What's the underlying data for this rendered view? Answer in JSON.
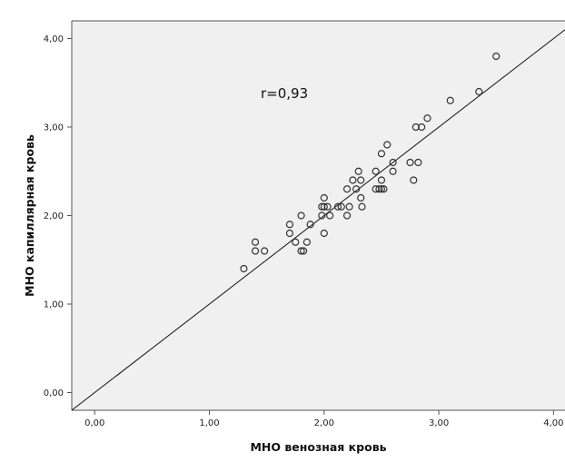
{
  "chart_data": {
    "type": "scatter",
    "xlabel": "МНО венозная кровь",
    "ylabel": "МНО капиллярная кровь",
    "annotation": "r=0,93",
    "xlim": [
      -0.2,
      4.1
    ],
    "ylim": [
      -0.2,
      4.2
    ],
    "x_ticks": [
      {
        "value": 0,
        "label": "0,00"
      },
      {
        "value": 1,
        "label": "1,00"
      },
      {
        "value": 2,
        "label": "2,00"
      },
      {
        "value": 3,
        "label": "3,00"
      },
      {
        "value": 4,
        "label": "4,00"
      }
    ],
    "y_ticks": [
      {
        "value": 0,
        "label": "0,00"
      },
      {
        "value": 1,
        "label": "1,00"
      },
      {
        "value": 2,
        "label": "2,00"
      },
      {
        "value": 3,
        "label": "3,00"
      },
      {
        "value": 4,
        "label": "4,00"
      }
    ],
    "reference_line": {
      "from": [
        -0.2,
        -0.2
      ],
      "to": [
        4.1,
        4.1
      ]
    },
    "grid": false,
    "colors": {
      "plot_background": "#f0f0f0",
      "marker_stroke": "#333333",
      "line": "#111111",
      "frame": "#555555"
    },
    "series": [
      {
        "points": [
          [
            1.3,
            1.4
          ],
          [
            1.4,
            1.6
          ],
          [
            1.4,
            1.7
          ],
          [
            1.48,
            1.6
          ],
          [
            1.7,
            1.8
          ],
          [
            1.7,
            1.9
          ],
          [
            1.75,
            1.7
          ],
          [
            1.8,
            1.6
          ],
          [
            1.82,
            1.6
          ],
          [
            1.8,
            2.0
          ],
          [
            1.85,
            1.7
          ],
          [
            1.88,
            1.9
          ],
          [
            1.98,
            2.0
          ],
          [
            1.98,
            2.1
          ],
          [
            2.0,
            2.1
          ],
          [
            2.0,
            2.2
          ],
          [
            2.0,
            1.8
          ],
          [
            2.03,
            2.1
          ],
          [
            2.05,
            2.0
          ],
          [
            2.12,
            2.1
          ],
          [
            2.15,
            2.1
          ],
          [
            2.2,
            2.0
          ],
          [
            2.22,
            2.1
          ],
          [
            2.2,
            2.3
          ],
          [
            2.25,
            2.4
          ],
          [
            2.28,
            2.3
          ],
          [
            2.3,
            2.5
          ],
          [
            2.32,
            2.4
          ],
          [
            2.32,
            2.2
          ],
          [
            2.33,
            2.1
          ],
          [
            2.45,
            2.3
          ],
          [
            2.45,
            2.5
          ],
          [
            2.48,
            2.3
          ],
          [
            2.5,
            2.3
          ],
          [
            2.5,
            2.4
          ],
          [
            2.52,
            2.3
          ],
          [
            2.5,
            2.7
          ],
          [
            2.55,
            2.8
          ],
          [
            2.6,
            2.6
          ],
          [
            2.6,
            2.5
          ],
          [
            2.75,
            2.6
          ],
          [
            2.78,
            2.4
          ],
          [
            2.8,
            3.0
          ],
          [
            2.82,
            2.6
          ],
          [
            2.85,
            3.0
          ],
          [
            2.9,
            3.1
          ],
          [
            3.1,
            3.3
          ],
          [
            3.35,
            3.4
          ],
          [
            3.5,
            3.8
          ]
        ]
      }
    ]
  }
}
